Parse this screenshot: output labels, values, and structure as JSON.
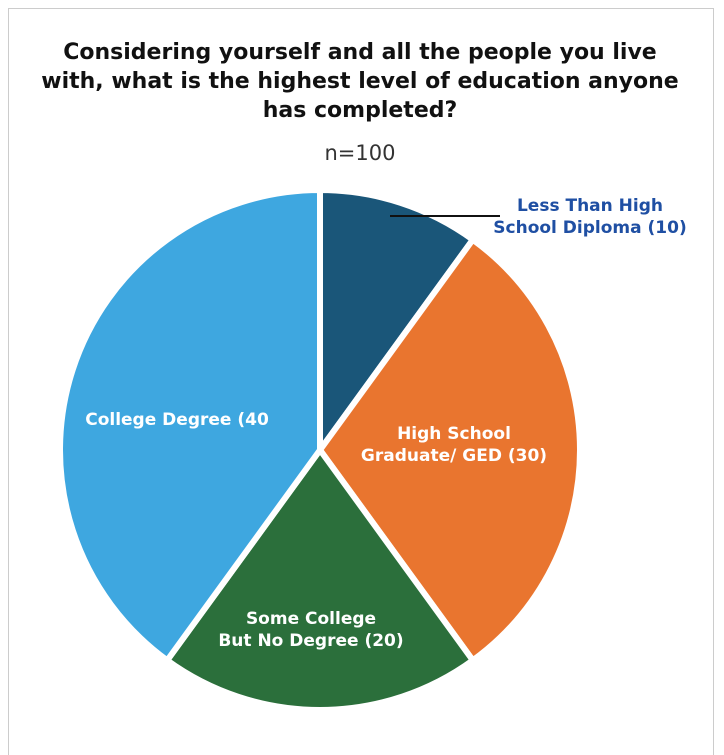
{
  "chart_data": {
    "type": "pie",
    "title": "Considering yourself and all the people you live with, what is the highest level of education anyone has completed?",
    "subtitle": "n=100",
    "slices": [
      {
        "label_lines": [
          "Less Than High",
          "School Diploma (10)"
        ],
        "value": 10,
        "color": "#1a5679",
        "label_color": "#1f4fa3"
      },
      {
        "label_lines": [
          "High School",
          "Graduate/ GED (30)"
        ],
        "value": 30,
        "color": "#e9752f",
        "label_color": "#ffffff"
      },
      {
        "label_lines": [
          "Some College",
          "But No Degree (20)"
        ],
        "value": 20,
        "color": "#2b6f3b",
        "label_color": "#ffffff"
      },
      {
        "label_lines": [
          "College Degree (40"
        ],
        "value": 40,
        "color": "#3ea7e0",
        "label_color": "#ffffff"
      }
    ]
  }
}
